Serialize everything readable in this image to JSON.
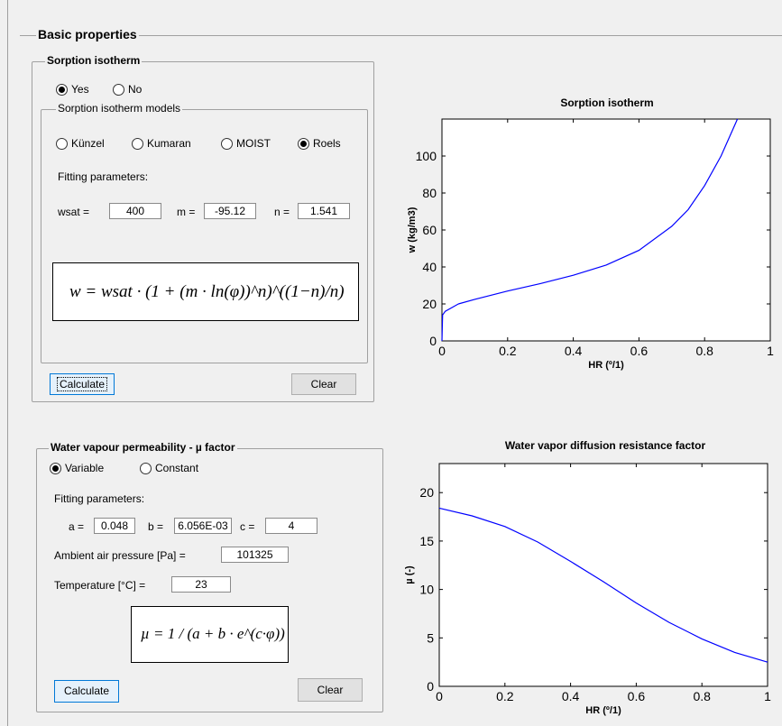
{
  "main_panel": {
    "title": "Basic properties"
  },
  "sorption": {
    "title": "Sorption isotherm",
    "enable_options": [
      {
        "label": "Yes",
        "checked": true
      },
      {
        "label": "No",
        "checked": false
      }
    ],
    "models_group": {
      "title": "Sorption isotherm models",
      "options": [
        {
          "label": "Künzel",
          "checked": false
        },
        {
          "label": "Kumaran",
          "checked": false
        },
        {
          "label": "MOIST",
          "checked": false
        },
        {
          "label": "Roels",
          "checked": true
        }
      ],
      "fitting_label": "Fitting parameters:",
      "params": {
        "wsat_label": "wsat =",
        "wsat_value": "400",
        "m_label": "m =",
        "m_value": "-95.12",
        "n_label": "n =",
        "n_value": "1.541"
      }
    },
    "formula_text": "w = wsat · (1 + (m · ln(φ))^n)^((1−n)/n)",
    "calculate_label": "Calculate",
    "clear_label": "Clear"
  },
  "vapour": {
    "title": "Water vapour permeability - µ factor",
    "options": [
      {
        "label": "Variable",
        "checked": true
      },
      {
        "label": "Constant",
        "checked": false
      }
    ],
    "fitting_label": "Fitting parameters:",
    "params": {
      "a_label": "a =",
      "a_value": "0.048",
      "b_label": "b =",
      "b_value": "6.056E-03",
      "c_label": "c =",
      "c_value": "4"
    },
    "pressure_label": "Ambient air pressure [Pa] =",
    "pressure_value": "101325",
    "temperature_label": "Temperature [°C] =",
    "temperature_value": "23",
    "formula_text": "µ = 1 / (a + b · e^(c·φ))",
    "calculate_label": "Calculate",
    "clear_label": "Clear"
  },
  "chart_data": [
    {
      "type": "line",
      "title": "Sorption isotherm",
      "xlabel": "HR (º/1)",
      "ylabel": "w (kg/m3)",
      "xlim": [
        0,
        1
      ],
      "ylim": [
        0,
        120
      ],
      "xticks": [
        "0",
        "0.2",
        "0.4",
        "0.6",
        "0.8",
        "1"
      ],
      "yticks": [
        "0",
        "20",
        "40",
        "60",
        "80",
        "100"
      ],
      "color": "#0000ff",
      "series": [
        {
          "x": [
            0,
            0.002,
            0.01,
            0.05,
            0.1,
            0.2,
            0.3,
            0.4,
            0.5,
            0.6,
            0.7,
            0.75,
            0.8,
            0.85,
            0.9
          ],
          "y": [
            0,
            14,
            16,
            20,
            22.5,
            27,
            31,
            35.5,
            41,
            49,
            62,
            71,
            84,
            100,
            120
          ]
        }
      ]
    },
    {
      "type": "line",
      "title": "Water vapor diffusion resistance factor",
      "xlabel": "HR (º/1)",
      "ylabel": "µ (-)",
      "xlim": [
        0,
        1
      ],
      "ylim": [
        0,
        23
      ],
      "xticks": [
        "0",
        "0.2",
        "0.4",
        "0.6",
        "0.8",
        "1"
      ],
      "yticks": [
        "0",
        "5",
        "10",
        "15",
        "20"
      ],
      "color": "#0000ff",
      "series": [
        {
          "x": [
            0,
            0.1,
            0.2,
            0.3,
            0.4,
            0.5,
            0.6,
            0.7,
            0.8,
            0.9,
            1.0
          ],
          "y": [
            18.4,
            17.6,
            16.5,
            14.9,
            12.9,
            10.8,
            8.6,
            6.6,
            4.9,
            3.5,
            2.5
          ]
        }
      ]
    }
  ]
}
